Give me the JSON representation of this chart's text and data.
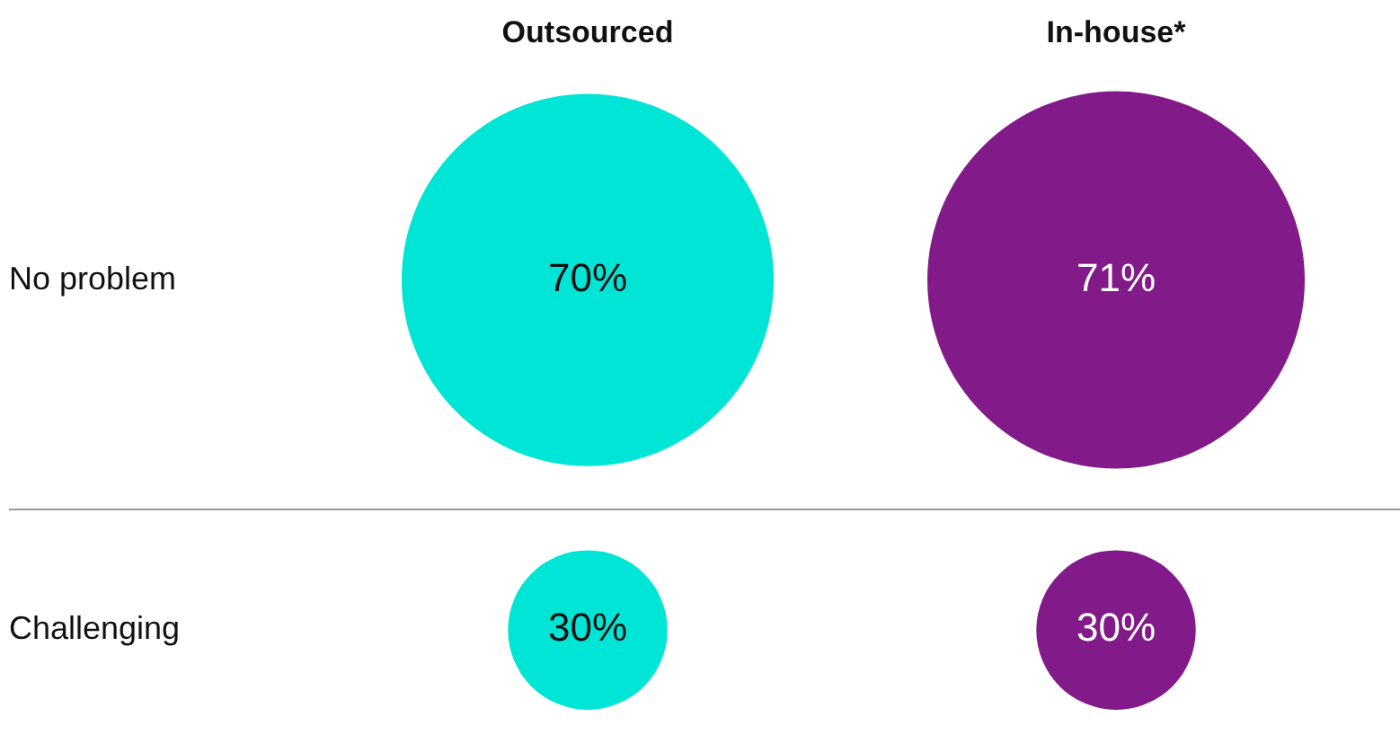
{
  "chart_data": {
    "type": "other",
    "categories": [
      "No problem",
      "Challenging"
    ],
    "series": [
      {
        "name": "Outsourced",
        "color": "#00e5d6",
        "values": [
          70,
          30
        ],
        "value_labels": [
          "70%",
          "30%"
        ]
      },
      {
        "name": "In-house*",
        "color": "#821a89",
        "values": [
          71,
          30
        ],
        "value_labels": [
          "71%",
          "30%"
        ]
      }
    ]
  }
}
